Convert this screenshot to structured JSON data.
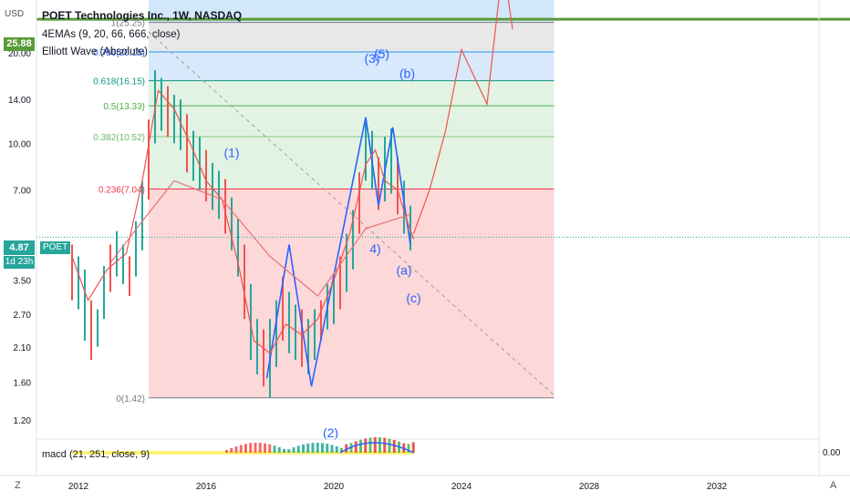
{
  "header": {
    "currency": "USD",
    "title": "POET Technologies Inc., 1W, NASDAQ",
    "indicator1": "4EMAs (9, 20, 66, 666, close)",
    "indicator2": "Elliott Wave (Absolute)"
  },
  "price_badges": {
    "level_green": "25.88",
    "current": "4.87",
    "countdown": "1d 23h",
    "symbol": "POET"
  },
  "macd": {
    "label": "macd (21, 251, close, 9)",
    "value": "0.00"
  },
  "bottom_bar": {
    "left_button": "Z",
    "right_button": "A"
  },
  "colors": {
    "green_line": "#5a9a3a",
    "price_badge": "#26a69a",
    "ema_red": "#f05350",
    "wave_blue": "#2962ff",
    "fib_red_fill": "#fdd4d4",
    "fib_green_fill": "#e0f2e0",
    "fib_blue_fill": "#d3e7fb",
    "fib_grey_fill": "#e6e6e6"
  },
  "chart_data": {
    "type": "line",
    "title": "POET Technologies Inc., 1W, NASDAQ",
    "yscale": "log",
    "ylim": [
      1.05,
      30
    ],
    "xlim": [
      2010.8,
      2035.2
    ],
    "y_ticks": [
      "20.00",
      "14.00",
      "10.00",
      "7.00",
      "3.50",
      "2.70",
      "2.10",
      "1.60",
      "1.20"
    ],
    "x_ticks": [
      "2012",
      "2016",
      "2020",
      "2024",
      "2028",
      "2032"
    ],
    "fib_levels": [
      {
        "label": "1(25.25)",
        "value": 25.25
      },
      {
        "label": "0.786(20.15)",
        "value": 20.15
      },
      {
        "label": "0.618(16.15)",
        "value": 16.15
      },
      {
        "label": "0.5(13.33)",
        "value": 13.33
      },
      {
        "label": "0.382(10.52)",
        "value": 10.52
      },
      {
        "label": "0.236(7.04)",
        "value": 7.04
      },
      {
        "label": "0(1.42)",
        "value": 1.42
      }
    ],
    "fib_start_x": 2014.2,
    "fib_end_x": 2026.9,
    "horizontal_line": 25.88,
    "current_price": 4.87,
    "wave_labels": [
      {
        "label": "(1)",
        "x": 2016.8,
        "y": 9.0
      },
      {
        "label": "(2)",
        "x": 2019.9,
        "y": 1.05
      },
      {
        "label": "(3)",
        "x": 2021.2,
        "y": 18.5
      },
      {
        "label": "(5)",
        "x": 2021.5,
        "y": 19.2
      },
      {
        "label": "(b)",
        "x": 2022.3,
        "y": 16.5
      },
      {
        "label": "4)",
        "x": 2021.3,
        "y": 4.3
      },
      {
        "label": "(a)",
        "x": 2022.2,
        "y": 3.65
      },
      {
        "label": "(c)",
        "x": 2022.5,
        "y": 2.95
      }
    ],
    "series": [
      {
        "name": "Elliott Wave (Absolute)",
        "x": [
          2017.9,
          2018.6,
          2019.3,
          2021.0,
          2021.4,
          2021.85,
          2022.4
        ],
        "y": [
          1.65,
          4.6,
          1.55,
          12.2,
          6.2,
          11.3,
          4.6
        ]
      },
      {
        "name": "EMA 9",
        "x": [
          2011.8,
          2012.3,
          2012.9,
          2013.5,
          2014.0,
          2014.5,
          2015.0,
          2015.5,
          2016.0,
          2016.5,
          2017.0,
          2017.5,
          2018.0,
          2018.5,
          2019.0,
          2019.5,
          2020.0,
          2020.5,
          2021.0,
          2021.3,
          2021.6,
          2022.0,
          2022.3,
          2022.5
        ],
        "y": [
          4.2,
          3.0,
          3.8,
          4.3,
          7.5,
          15.0,
          13.0,
          10.0,
          7.5,
          6.5,
          4.0,
          2.2,
          2.0,
          2.5,
          2.3,
          2.6,
          3.5,
          5.0,
          8.5,
          9.5,
          7.5,
          7.0,
          5.5,
          4.8
        ]
      },
      {
        "name": "EMA 666",
        "x": [
          2013.0,
          2014.0,
          2015.0,
          2016.5,
          2018.0,
          2019.5,
          2021.0,
          2022.4
        ],
        "y": [
          4.0,
          5.5,
          7.5,
          6.5,
          4.2,
          3.1,
          5.2,
          5.8
        ]
      },
      {
        "name": "Projection",
        "x": [
          2022.5,
          2023.0,
          2023.5,
          2024.0,
          2024.8,
          2025.3,
          2025.6
        ],
        "y": [
          5.0,
          7.0,
          11.0,
          20.5,
          13.5,
          40.0,
          24.0
        ]
      },
      {
        "name": "Trend line",
        "x": [
          2014.2,
          2026.9
        ],
        "y": [
          23.5,
          1.45
        ]
      }
    ],
    "candles": [
      [
        2011.8,
        4.6,
        3.0
      ],
      [
        2012.0,
        4.2,
        2.8
      ],
      [
        2012.2,
        3.8,
        2.2
      ],
      [
        2012.4,
        3.0,
        1.9
      ],
      [
        2012.6,
        2.8,
        2.1
      ],
      [
        2012.8,
        3.9,
        2.6
      ],
      [
        2013.0,
        4.6,
        3.2
      ],
      [
        2013.2,
        5.1,
        3.6
      ],
      [
        2013.4,
        4.6,
        3.4
      ],
      [
        2013.6,
        4.2,
        3.1
      ],
      [
        2013.8,
        5.5,
        3.6
      ],
      [
        2014.0,
        7.5,
        4.4
      ],
      [
        2014.2,
        12.0,
        6.5
      ],
      [
        2014.4,
        17.5,
        10.0
      ],
      [
        2014.6,
        16.5,
        11.0
      ],
      [
        2014.8,
        15.5,
        10.5
      ],
      [
        2015.0,
        14.5,
        10.0
      ],
      [
        2015.2,
        14.0,
        9.5
      ],
      [
        2015.4,
        12.5,
        8.0
      ],
      [
        2015.6,
        11.0,
        7.5
      ],
      [
        2015.8,
        10.5,
        7.0
      ],
      [
        2016.0,
        9.5,
        6.4
      ],
      [
        2016.2,
        8.6,
        6.0
      ],
      [
        2016.4,
        8.1,
        5.6
      ],
      [
        2016.6,
        7.6,
        5.0
      ],
      [
        2016.8,
        6.6,
        4.4
      ],
      [
        2017.0,
        5.6,
        3.6
      ],
      [
        2017.2,
        4.6,
        2.6
      ],
      [
        2017.4,
        3.4,
        1.9
      ],
      [
        2017.6,
        2.6,
        1.7
      ],
      [
        2017.8,
        2.4,
        1.55
      ],
      [
        2018.0,
        2.6,
        1.42
      ],
      [
        2018.2,
        3.0,
        1.8
      ],
      [
        2018.4,
        3.6,
        2.2
      ],
      [
        2018.6,
        3.2,
        2.0
      ],
      [
        2018.8,
        2.9,
        1.9
      ],
      [
        2019.0,
        2.8,
        1.8
      ],
      [
        2019.2,
        2.6,
        1.7
      ],
      [
        2019.4,
        2.8,
        1.9
      ],
      [
        2019.6,
        3.0,
        2.2
      ],
      [
        2019.8,
        3.4,
        2.4
      ],
      [
        2020.0,
        3.6,
        2.5
      ],
      [
        2020.2,
        4.2,
        2.8
      ],
      [
        2020.4,
        5.0,
        3.2
      ],
      [
        2020.6,
        6.0,
        3.8
      ],
      [
        2020.8,
        8.0,
        5.0
      ],
      [
        2021.0,
        12.0,
        7.5
      ],
      [
        2021.2,
        11.0,
        7.0
      ],
      [
        2021.4,
        9.0,
        6.0
      ],
      [
        2021.6,
        10.5,
        6.4
      ],
      [
        2021.8,
        11.2,
        6.8
      ],
      [
        2022.0,
        9.0,
        5.8
      ],
      [
        2022.2,
        7.5,
        5.0
      ],
      [
        2022.4,
        6.2,
        4.4
      ]
    ]
  }
}
